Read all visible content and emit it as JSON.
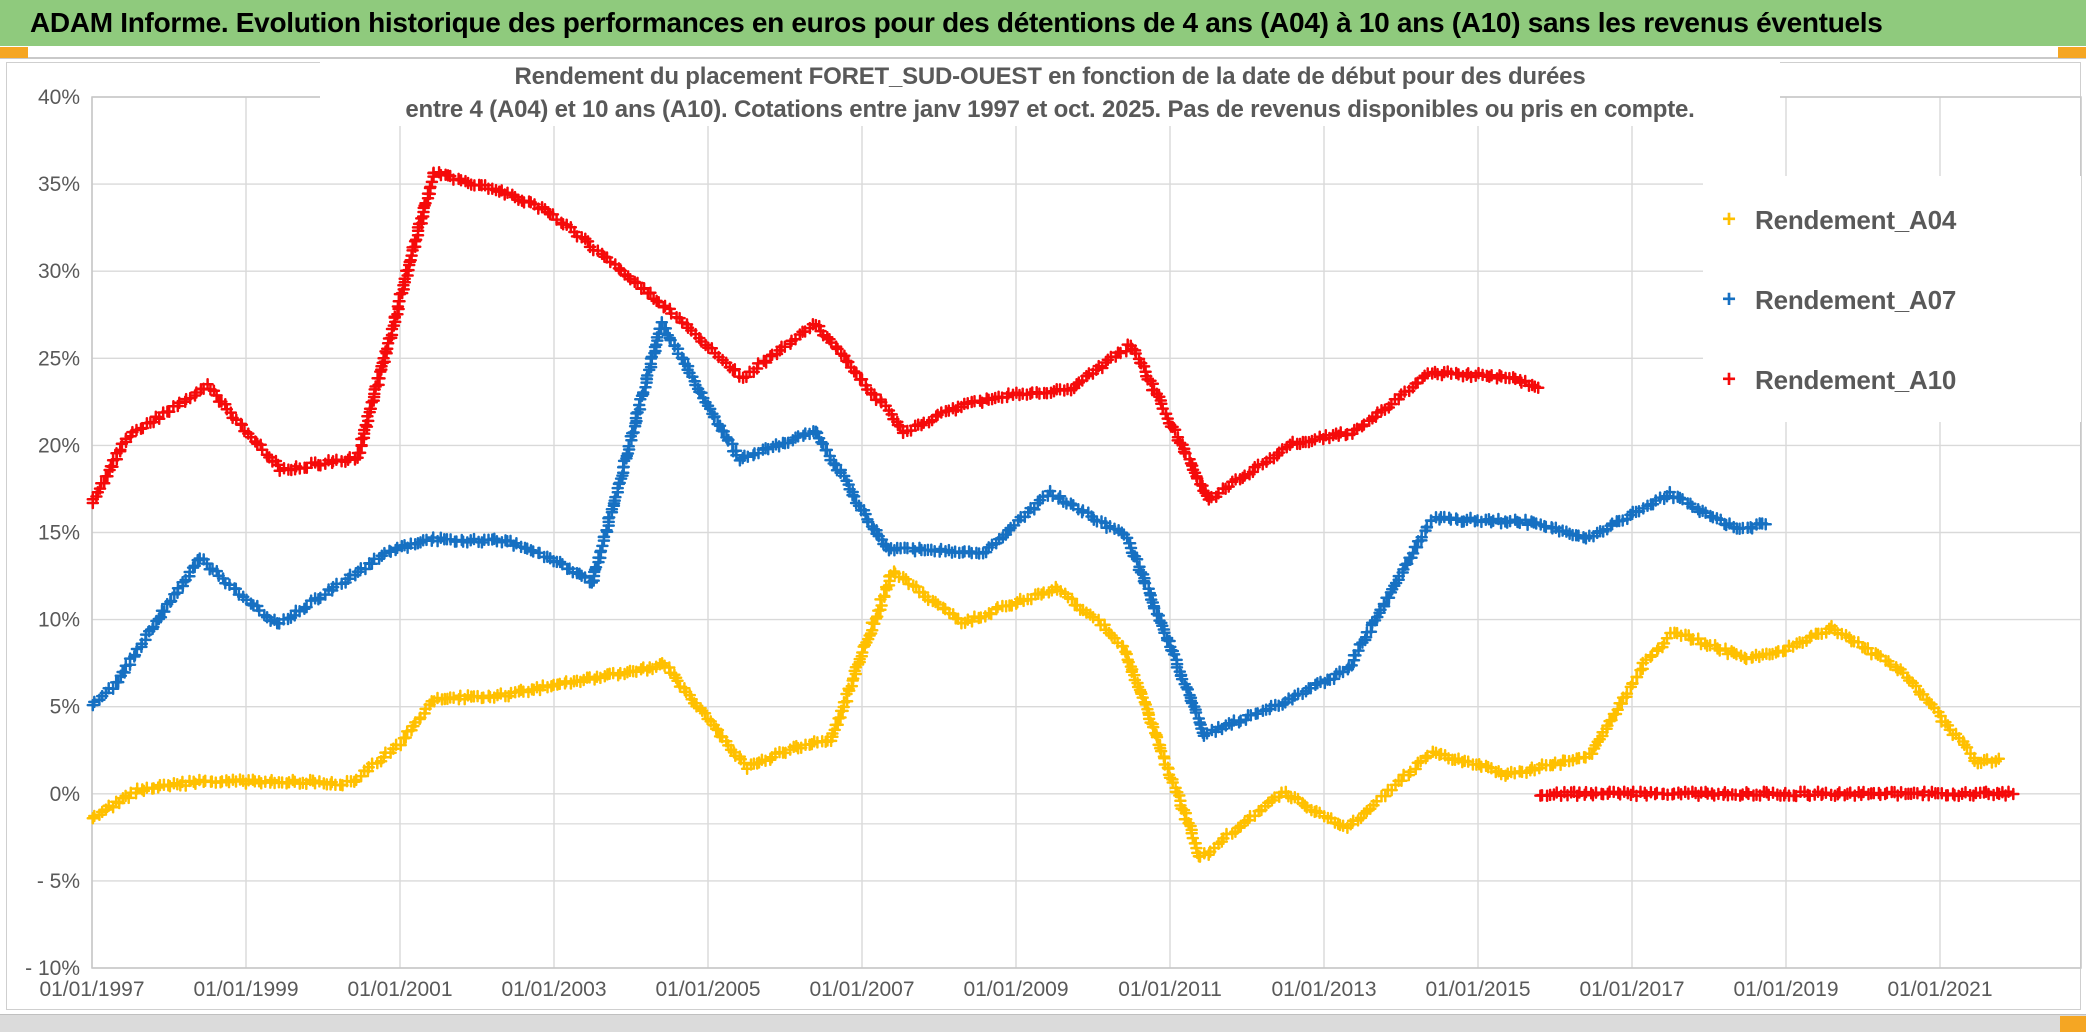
{
  "window_title": "ADAM Informe. Evolution historique des performances en euros pour des détentions de 4 ans (A04) à 10 ans (A10) sans les revenus éventuels",
  "colors": {
    "title_bar_bg": "#8FCA7D",
    "accent_orange": "#F5A623",
    "grid": "#D9D9D9",
    "plot_border": "#C6C6C6",
    "text_gray": "#595959",
    "series_a04": "#FFC000",
    "series_a07": "#1670C2",
    "series_a10": "#F50A0A"
  },
  "chart_data": {
    "type": "line",
    "title_line1": "Rendement du placement FORET_SUD-OUEST en fonction de la date de début pour des durées",
    "title_line2": "entre 4 (A04) et 10 ans (A10). Cotations entre janv 1997 et oct. 2025. Pas de revenus disponibles ou pris en compte.",
    "xlabel": "",
    "ylabel": "",
    "xlim": [
      1997,
      2022.85
    ],
    "ylim": [
      -10,
      40
    ],
    "grid": true,
    "legend_position": "inside-right",
    "x_ticks": [
      {
        "label": "01/01/1997",
        "year": 1997
      },
      {
        "label": "01/01/1999",
        "year": 1999
      },
      {
        "label": "01/01/2001",
        "year": 2001
      },
      {
        "label": "01/01/2003",
        "year": 2003
      },
      {
        "label": "01/01/2005",
        "year": 2005
      },
      {
        "label": "01/01/2007",
        "year": 2007
      },
      {
        "label": "01/01/2009",
        "year": 2009
      },
      {
        "label": "01/01/2011",
        "year": 2011
      },
      {
        "label": "01/01/2013",
        "year": 2013
      },
      {
        "label": "01/01/2015",
        "year": 2015
      },
      {
        "label": "01/01/2017",
        "year": 2017
      },
      {
        "label": "01/01/2019",
        "year": 2019
      },
      {
        "label": "01/01/2021",
        "year": 2021
      }
    ],
    "y_ticks": [
      {
        "label": "40%",
        "value": 40
      },
      {
        "label": "35%",
        "value": 35
      },
      {
        "label": "30%",
        "value": 30
      },
      {
        "label": "25%",
        "value": 25
      },
      {
        "label": "20%",
        "value": 20
      },
      {
        "label": "15%",
        "value": 15
      },
      {
        "label": "10%",
        "value": 10
      },
      {
        "label": "5%",
        "value": 5
      },
      {
        "label": "0%",
        "value": 0
      },
      {
        "label": "- 5%",
        "value": -5
      },
      {
        "label": "- 10%",
        "value": -10
      }
    ],
    "series": [
      {
        "name": "Rendement_A04",
        "marker": "+",
        "color": "#FFC000",
        "points": [
          [
            1997.0,
            -1.3
          ],
          [
            1997.6,
            0.2
          ],
          [
            1998.4,
            0.7
          ],
          [
            1999.6,
            0.7
          ],
          [
            2000.35,
            0.6
          ],
          [
            2001.0,
            2.9
          ],
          [
            2001.45,
            5.4
          ],
          [
            2002.4,
            5.7
          ],
          [
            2003.0,
            6.2
          ],
          [
            2004.0,
            7.0
          ],
          [
            2004.45,
            7.4
          ],
          [
            2005.5,
            1.5
          ],
          [
            2006.1,
            2.6
          ],
          [
            2006.6,
            3.1
          ],
          [
            2007.4,
            12.8
          ],
          [
            2008.3,
            9.8
          ],
          [
            2009.5,
            11.8
          ],
          [
            2010.1,
            9.8
          ],
          [
            2010.4,
            8.4
          ],
          [
            2011.4,
            -3.7
          ],
          [
            2012.45,
            0.1
          ],
          [
            2013.3,
            -2.0
          ],
          [
            2014.4,
            2.4
          ],
          [
            2015.4,
            1.1
          ],
          [
            2016.45,
            2.2
          ],
          [
            2017.15,
            7.4
          ],
          [
            2017.55,
            9.3
          ],
          [
            2018.5,
            7.7
          ],
          [
            2019.0,
            8.3
          ],
          [
            2019.6,
            9.5
          ],
          [
            2020.5,
            7.1
          ],
          [
            2021.5,
            1.8
          ],
          [
            2021.75,
            1.9
          ]
        ]
      },
      {
        "name": "Rendement_A07",
        "marker": "+",
        "color": "#1670C2",
        "points": [
          [
            1997.0,
            5.2
          ],
          [
            1997.3,
            6.3
          ],
          [
            1998.4,
            13.5
          ],
          [
            1999.4,
            9.7
          ],
          [
            2000.85,
            13.9
          ],
          [
            2001.4,
            14.6
          ],
          [
            2002.4,
            14.5
          ],
          [
            2003.0,
            13.4
          ],
          [
            2003.5,
            12.1
          ],
          [
            2004.4,
            27.0
          ],
          [
            2005.4,
            19.2
          ],
          [
            2006.4,
            20.8
          ],
          [
            2007.3,
            14.1
          ],
          [
            2008.6,
            13.9
          ],
          [
            2009.45,
            17.3
          ],
          [
            2010.45,
            14.7
          ],
          [
            2011.45,
            3.4
          ],
          [
            2012.5,
            5.3
          ],
          [
            2013.3,
            7.1
          ],
          [
            2014.4,
            15.8
          ],
          [
            2015.6,
            15.6
          ],
          [
            2016.45,
            14.7
          ],
          [
            2017.5,
            17.2
          ],
          [
            2018.4,
            15.1
          ],
          [
            2018.75,
            15.6
          ]
        ]
      },
      {
        "name": "Rendement_A10",
        "marker": "+",
        "color": "#F50A0A",
        "points": [
          [
            1997.0,
            16.8
          ],
          [
            1997.45,
            20.4
          ],
          [
            1998.5,
            23.4
          ],
          [
            1999.45,
            18.6
          ],
          [
            2000.45,
            19.3
          ],
          [
            2001.45,
            35.7
          ],
          [
            2002.45,
            34.4
          ],
          [
            2003.0,
            33.2
          ],
          [
            2004.05,
            29.4
          ],
          [
            2004.45,
            27.9
          ],
          [
            2005.45,
            23.9
          ],
          [
            2006.4,
            27.0
          ],
          [
            2007.55,
            20.8
          ],
          [
            2008.3,
            22.3
          ],
          [
            2009.0,
            23.0
          ],
          [
            2009.7,
            23.2
          ],
          [
            2010.5,
            25.8
          ],
          [
            2011.5,
            16.9
          ],
          [
            2012.6,
            20.1
          ],
          [
            2013.4,
            20.8
          ],
          [
            2014.4,
            24.2
          ],
          [
            2015.45,
            23.9
          ],
          [
            2015.78,
            23.3
          ]
        ],
        "points_flat": [
          [
            2015.8,
            0.0
          ],
          [
            2021.95,
            0.0
          ]
        ]
      }
    ]
  }
}
